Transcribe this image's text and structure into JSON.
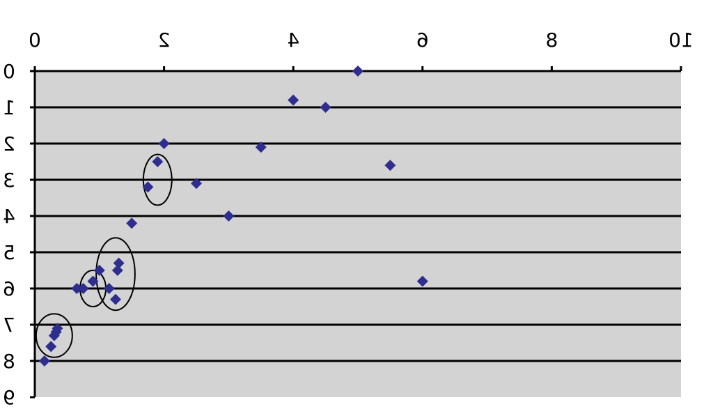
{
  "chart_data": {
    "type": "scatter",
    "title": "",
    "xlabel": "",
    "ylabel": "",
    "xlim": [
      0,
      10
    ],
    "ylim": [
      0,
      9
    ],
    "y_axis_inverted": true,
    "x_axis_position": "top",
    "x_ticks": [
      "0",
      "2",
      "4",
      "6",
      "8",
      "10"
    ],
    "y_ticks": [
      "0",
      "1",
      "2",
      "3",
      "4",
      "5",
      "6",
      "7",
      "8",
      "9"
    ],
    "tick_labels_mirrored": true,
    "grid": "horizontal",
    "legend": "none",
    "plot_background": "#d3d3d3",
    "marker_color": "#2e2e8f",
    "points": [
      {
        "x": 5.0,
        "y": 0.0
      },
      {
        "x": 4.5,
        "y": 1.0
      },
      {
        "x": 4.0,
        "y": 0.8
      },
      {
        "x": 2.0,
        "y": 2.0
      },
      {
        "x": 3.5,
        "y": 2.1
      },
      {
        "x": 1.9,
        "y": 2.5
      },
      {
        "x": 2.5,
        "y": 3.1
      },
      {
        "x": 1.75,
        "y": 3.2
      },
      {
        "x": 3.0,
        "y": 4.0
      },
      {
        "x": 5.5,
        "y": 2.6
      },
      {
        "x": 6.0,
        "y": 5.8
      },
      {
        "x": 1.5,
        "y": 4.2
      },
      {
        "x": 1.3,
        "y": 5.3
      },
      {
        "x": 1.28,
        "y": 5.5
      },
      {
        "x": 1.0,
        "y": 5.5
      },
      {
        "x": 0.9,
        "y": 5.8
      },
      {
        "x": 0.75,
        "y": 6.0
      },
      {
        "x": 0.65,
        "y": 6.0
      },
      {
        "x": 1.15,
        "y": 6.0
      },
      {
        "x": 1.25,
        "y": 6.3
      },
      {
        "x": 0.35,
        "y": 7.1
      },
      {
        "x": 0.33,
        "y": 7.2
      },
      {
        "x": 0.3,
        "y": 7.3
      },
      {
        "x": 0.25,
        "y": 7.6
      },
      {
        "x": 0.15,
        "y": 8.0
      }
    ],
    "annotations": [
      {
        "type": "ellipse",
        "cx": 1.9,
        "cy": 3.0,
        "rx": 0.22,
        "ry": 0.7
      },
      {
        "type": "ellipse",
        "cx": 1.25,
        "cy": 5.6,
        "rx": 0.3,
        "ry": 1.0
      },
      {
        "type": "ellipse",
        "cx": 0.9,
        "cy": 6.0,
        "rx": 0.2,
        "ry": 0.5
      },
      {
        "type": "ellipse",
        "cx": 0.3,
        "cy": 7.3,
        "rx": 0.28,
        "ry": 0.6
      }
    ]
  }
}
